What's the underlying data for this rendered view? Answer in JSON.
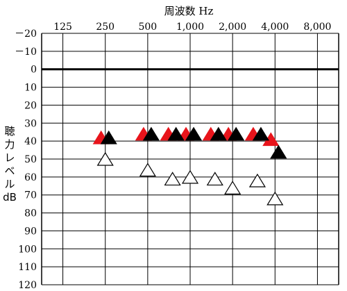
{
  "chart_data": {
    "type": "scatter",
    "title": "周波数 Hz",
    "xlabel": "周波数 Hz",
    "ylabel": [
      "聴",
      "力",
      "レ",
      "ベ",
      "ル",
      "dB"
    ],
    "x_ticks": [
      "125",
      "250",
      "500",
      "1,000",
      "2,000",
      "4,000",
      "8,000"
    ],
    "y_ticks": [
      "－20",
      "－10",
      "0",
      "10",
      "20",
      "30",
      "40",
      "50",
      "60",
      "70",
      "80",
      "90",
      "100",
      "110",
      "120"
    ],
    "ylim": [
      -20,
      120
    ],
    "y_inverted": true,
    "x_scale": "log2",
    "grid": true,
    "reference_line_db": 0,
    "series": [
      {
        "marker": "filled-triangle",
        "color": "#e8141b",
        "points": [
          {
            "x": 250,
            "y": 38
          },
          {
            "x": 500,
            "y": 36
          },
          {
            "x": 750,
            "y": 36
          },
          {
            "x": 1000,
            "y": 36
          },
          {
            "x": 1500,
            "y": 36
          },
          {
            "x": 2000,
            "y": 36
          },
          {
            "x": 3000,
            "y": 36
          },
          {
            "x": 4000,
            "y": 39
          }
        ]
      },
      {
        "marker": "filled-triangle",
        "color": "#000000",
        "points": [
          {
            "x": 250,
            "y": 38
          },
          {
            "x": 500,
            "y": 36
          },
          {
            "x": 750,
            "y": 36
          },
          {
            "x": 1000,
            "y": 36
          },
          {
            "x": 1500,
            "y": 36
          },
          {
            "x": 2000,
            "y": 36
          },
          {
            "x": 3000,
            "y": 36
          },
          {
            "x": 4000,
            "y": 46
          }
        ]
      },
      {
        "marker": "open-triangle",
        "color": "#000000",
        "points": [
          {
            "x": 250,
            "y": 50
          },
          {
            "x": 500,
            "y": 56
          },
          {
            "x": 750,
            "y": 61
          },
          {
            "x": 1000,
            "y": 60
          },
          {
            "x": 1500,
            "y": 61
          },
          {
            "x": 2000,
            "y": 66
          },
          {
            "x": 3000,
            "y": 62
          },
          {
            "x": 4000,
            "y": 72
          }
        ]
      }
    ]
  }
}
